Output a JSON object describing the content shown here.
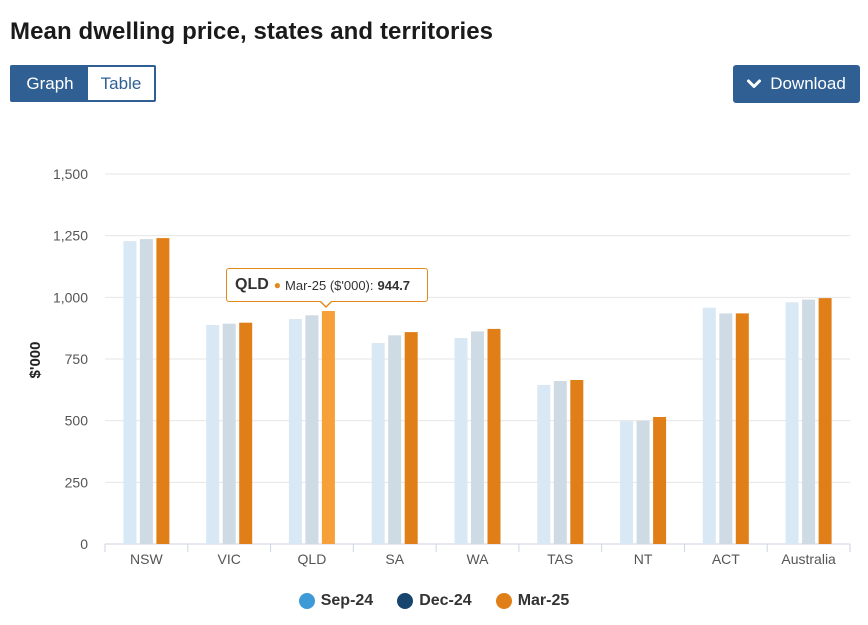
{
  "page": {
    "title": "Mean dwelling price, states and territories",
    "toggle": {
      "graph_label": "Graph",
      "table_label": "Table",
      "active": "Graph"
    },
    "download_label": "Download"
  },
  "colors": {
    "accent": "#2f5f93",
    "sep24_dim": "#d8e8f5",
    "dec24_dim": "#cfdbe4",
    "mar25": "#e07f18",
    "mar25_hover": "#f7a03a",
    "legend_sep24": "#3d9ad6",
    "legend_dec24": "#17456e",
    "legend_mar25": "#e07f18"
  },
  "chart_data": {
    "type": "bar",
    "title": "Mean dwelling price, states and territories",
    "xlabel": "",
    "ylabel": "$'000",
    "ylim": [
      0,
      1500
    ],
    "yticks": [
      0,
      250,
      500,
      750,
      "1,000",
      "1,250",
      "1,500"
    ],
    "ytick_values": [
      0,
      250,
      500,
      750,
      1000,
      1250,
      1500
    ],
    "categories": [
      "NSW",
      "VIC",
      "QLD",
      "SA",
      "WA",
      "TAS",
      "NT",
      "ACT",
      "Australia"
    ],
    "series": [
      {
        "name": "Sep-24",
        "values": [
          1228,
          888,
          912,
          815,
          835,
          645,
          498,
          958,
          980
        ]
      },
      {
        "name": "Dec-24",
        "values": [
          1236,
          893,
          927,
          846,
          862,
          661,
          500,
          935,
          991
        ]
      },
      {
        "name": "Mar-25",
        "values": [
          1240,
          897,
          944.7,
          859,
          872,
          665,
          515,
          935,
          997
        ]
      }
    ],
    "legend": [
      "Sep-24",
      "Dec-24",
      "Mar-25"
    ],
    "legend_position": "bottom",
    "grid": true,
    "tooltip": {
      "category": "QLD",
      "series_label": "Mar-25 ($'000):",
      "value": "944.7"
    }
  }
}
